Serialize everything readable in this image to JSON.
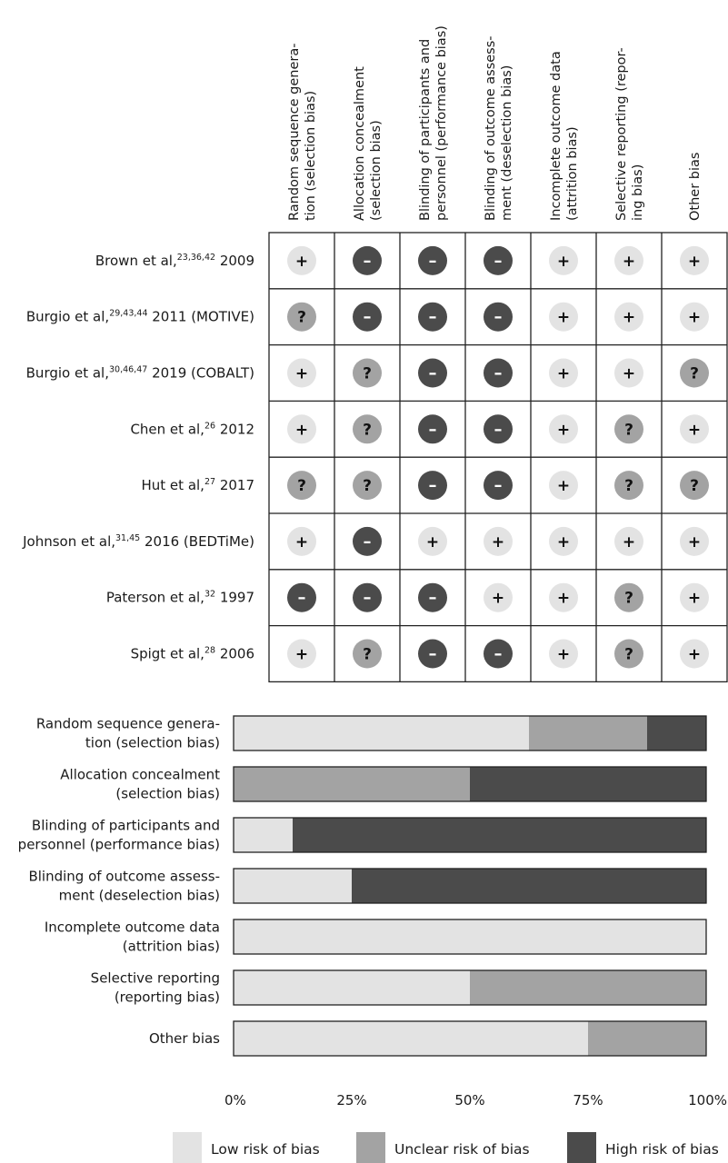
{
  "colors": {
    "low": "#e3e3e3",
    "unclear": "#a3a3a3",
    "high": "#4b4b4b",
    "grid": "#222222"
  },
  "chart_data": [
    {
      "type": "table",
      "columns": [
        [
          "Random sequence genera-",
          "tion (selection bias)"
        ],
        [
          "Allocation concealment",
          "(selection bias)"
        ],
        [
          "Blinding of participants and",
          "personnel (performance bias)"
        ],
        [
          "Blinding of outcome assess-",
          "ment (deselection bias)"
        ],
        [
          "Incomplete outcome data",
          "(attrition bias)"
        ],
        [
          "Selective reporting (repor-",
          "ing bias)"
        ],
        [
          "Other bias"
        ]
      ],
      "rows": [
        {
          "pre": "Brown et al,",
          "sup": "23,36,42",
          "post": " 2009",
          "ratings": [
            "low",
            "high",
            "high",
            "high",
            "low",
            "low",
            "low"
          ]
        },
        {
          "pre": "Burgio et al,",
          "sup": "29,43,44",
          "post": " 2011 (MOTIVE)",
          "ratings": [
            "unclear",
            "high",
            "high",
            "high",
            "low",
            "low",
            "low"
          ]
        },
        {
          "pre": "Burgio et al,",
          "sup": "30,46,47",
          "post": " 2019 (COBALT)",
          "ratings": [
            "low",
            "unclear",
            "high",
            "high",
            "low",
            "low",
            "unclear"
          ]
        },
        {
          "pre": "Chen et al,",
          "sup": "26",
          "post": " 2012",
          "ratings": [
            "low",
            "unclear",
            "high",
            "high",
            "low",
            "unclear",
            "low"
          ]
        },
        {
          "pre": "Hut et al,",
          "sup": "27",
          "post": " 2017",
          "ratings": [
            "unclear",
            "unclear",
            "high",
            "high",
            "low",
            "unclear",
            "unclear"
          ]
        },
        {
          "pre": "Johnson et al,",
          "sup": "31,45",
          "post": " 2016 (BEDTiMe)",
          "ratings": [
            "low",
            "high",
            "low",
            "low",
            "low",
            "low",
            "low"
          ]
        },
        {
          "pre": "Paterson et al,",
          "sup": "32",
          "post": " 1997",
          "ratings": [
            "high",
            "high",
            "high",
            "low",
            "low",
            "unclear",
            "low"
          ]
        },
        {
          "pre": "Spigt et al,",
          "sup": "28",
          "post": " 2006",
          "ratings": [
            "low",
            "unclear",
            "high",
            "high",
            "low",
            "unclear",
            "low"
          ]
        }
      ],
      "symbols": {
        "low": "+",
        "unclear": "?",
        "high": "–"
      }
    },
    {
      "type": "bar",
      "stacked": true,
      "orientation": "horizontal",
      "categories": [
        [
          "Random sequence genera-",
          "tion (selection bias)"
        ],
        [
          "Allocation concealment",
          "(selection bias)"
        ],
        [
          "Blinding of participants and",
          "personnel (performance bias)"
        ],
        [
          "Blinding of outcome assess-",
          "ment (deselection bias)"
        ],
        [
          "Incomplete outcome data",
          "(attrition bias)"
        ],
        [
          "Selective reporting",
          "(reporting bias)"
        ],
        [
          "Other bias"
        ]
      ],
      "series": [
        {
          "name": "Low risk of bias",
          "key": "low",
          "values": [
            62.5,
            0,
            12.5,
            25,
            100,
            50,
            75
          ]
        },
        {
          "name": "Unclear risk of bias",
          "key": "unclear",
          "values": [
            25,
            50,
            0,
            0,
            0,
            50,
            25
          ]
        },
        {
          "name": "High risk of bias",
          "key": "high",
          "values": [
            12.5,
            50,
            87.5,
            75,
            0,
            0,
            0
          ]
        }
      ],
      "xlim": [
        0,
        100
      ],
      "ticks": [
        "0%",
        "25%",
        "50%",
        "75%",
        "100%"
      ],
      "legend_position": "bottom"
    }
  ]
}
